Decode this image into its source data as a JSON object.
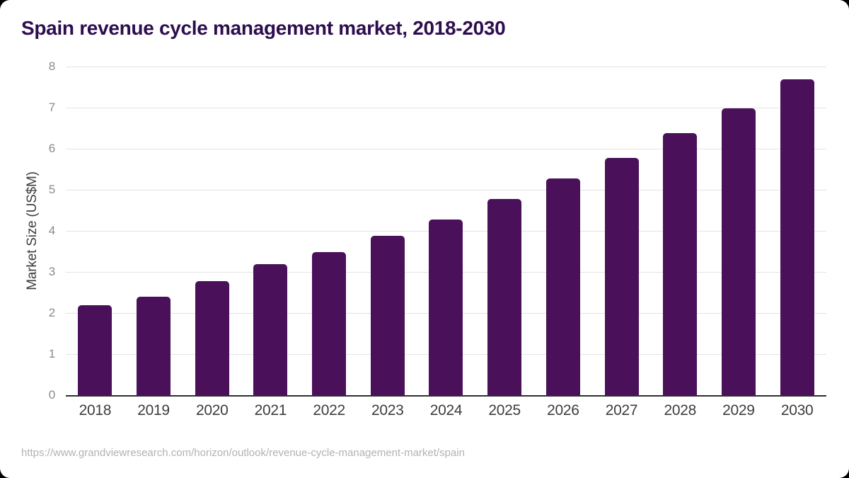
{
  "page": {
    "background_color": "#000000",
    "card_color": "#ffffff"
  },
  "title": {
    "text": "Spain revenue cycle management market, 2018-2030",
    "color": "#2d0d4e"
  },
  "source_url": "https://www.grandviewresearch.com/horizon/outlook/revenue-cycle-management-market/spain",
  "chart_data": {
    "type": "bar",
    "title": "Spain revenue cycle management market, 2018-2030",
    "categories": [
      "2018",
      "2019",
      "2020",
      "2021",
      "2022",
      "2023",
      "2024",
      "2025",
      "2026",
      "2027",
      "2028",
      "2029",
      "2030"
    ],
    "values": [
      2.19,
      2.39,
      2.77,
      3.19,
      3.49,
      3.88,
      4.28,
      4.77,
      5.27,
      5.77,
      6.38,
      6.98,
      7.69
    ],
    "xlabel": "",
    "ylabel": "Market Size (US$M)",
    "ylim": [
      0,
      8
    ],
    "yticks": [
      0,
      1,
      2,
      3,
      4,
      5,
      6,
      7,
      8
    ],
    "grid": true,
    "legend": "none",
    "bar_color": "#4a115a",
    "axis_line_color": "#2f2f2f",
    "gridline_color": "#e3e3e3",
    "y_tick_label_color": "#8a8a8a",
    "x_tick_label_color": "#3d3d3d"
  }
}
